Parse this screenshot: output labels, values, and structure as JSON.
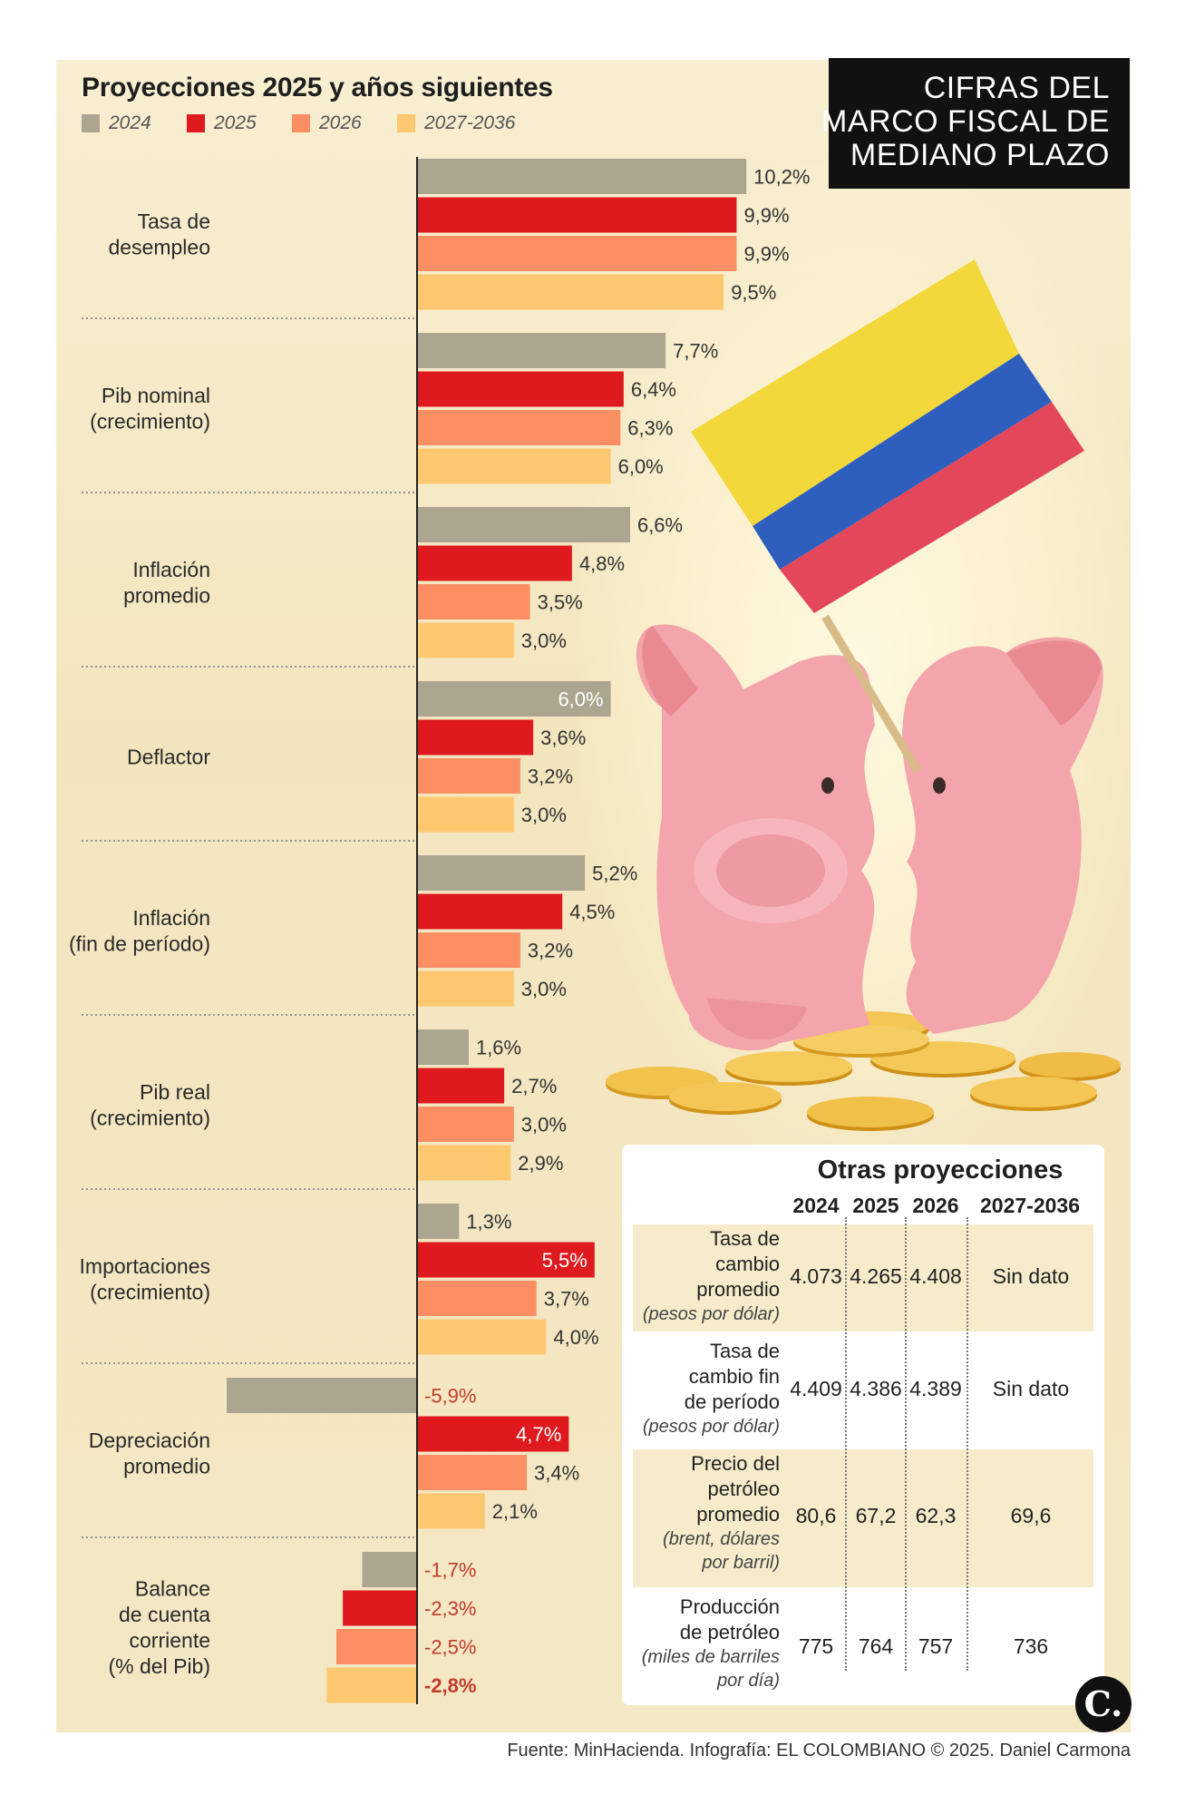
{
  "title_box": {
    "lines": [
      "CIFRAS DEL",
      "MARCO FISCAL DE",
      "MEDIANO PLAZO"
    ]
  },
  "colors": {
    "2024": "#aca58f",
    "2025": "#df1a1e",
    "2026": "#fc8e64",
    "2027-2036": "#fec871",
    "negative_label": "#c23b2c"
  },
  "chart_data": {
    "type": "bar",
    "orientation": "horizontal",
    "title": "Proyecciones 2025 y años siguientes",
    "unit": "%",
    "series_names": [
      "2024",
      "2025",
      "2026",
      "2027-2036"
    ],
    "categories": [
      {
        "label": [
          "Tasa de",
          "desempleo"
        ],
        "values": [
          10.2,
          9.9,
          9.9,
          9.5
        ],
        "value_labels": [
          "10,2%",
          "9,9%",
          "9,9%",
          "9,5%"
        ]
      },
      {
        "label": [
          "Pib nominal",
          "(crecimiento)"
        ],
        "values": [
          7.7,
          6.4,
          6.3,
          6.0
        ],
        "value_labels": [
          "7,7%",
          "6,4%",
          "6,3%",
          "6,0%"
        ]
      },
      {
        "label": [
          "Inflación",
          "promedio"
        ],
        "values": [
          6.6,
          4.8,
          3.5,
          3.0
        ],
        "value_labels": [
          "6,6%",
          "4,8%",
          "3,5%",
          "3,0%"
        ]
      },
      {
        "label": [
          "Deflactor"
        ],
        "values": [
          6.0,
          3.6,
          3.2,
          3.0
        ],
        "value_labels": [
          "6,0%",
          "3,6%",
          "3,2%",
          "3,0%"
        ]
      },
      {
        "label": [
          "Inflación",
          "(fin de período)"
        ],
        "values": [
          5.2,
          4.5,
          3.2,
          3.0
        ],
        "value_labels": [
          "5,2%",
          "4,5%",
          "3,2%",
          "3,0%"
        ]
      },
      {
        "label": [
          "Pib real",
          "(crecimiento)"
        ],
        "values": [
          1.6,
          2.7,
          3.0,
          2.9
        ],
        "value_labels": [
          "1,6%",
          "2,7%",
          "3,0%",
          "2,9%"
        ]
      },
      {
        "label": [
          "Importaciones",
          "(crecimiento)"
        ],
        "values": [
          1.3,
          5.5,
          3.7,
          4.0
        ],
        "value_labels": [
          "1,3%",
          "5,5%",
          "3,7%",
          "4,0%"
        ]
      },
      {
        "label": [
          "Depreciación",
          "promedio"
        ],
        "values": [
          -5.9,
          4.7,
          3.4,
          2.1
        ],
        "value_labels": [
          "-5,9%",
          "4,7%",
          "3,4%",
          "2,1%"
        ]
      },
      {
        "label": [
          "Balance",
          "de cuenta",
          "corriente",
          "(% del Pib)"
        ],
        "values": [
          -1.7,
          -2.3,
          -2.5,
          -2.8
        ],
        "value_labels": [
          "-1,7%",
          "-2,3%",
          "-2,5%",
          "-2,8%"
        ]
      }
    ]
  },
  "table": {
    "title": "Otras proyecciones",
    "headers": [
      "2024",
      "2025",
      "2026",
      "2027-2036"
    ],
    "rows": [
      {
        "label": [
          "Tasa de",
          "cambio",
          "promedio"
        ],
        "note": "(pesos por dólar)",
        "values": [
          "4.073",
          "4.265",
          "4.408",
          "Sin dato"
        ]
      },
      {
        "label": [
          "Tasa de",
          "cambio fin",
          "de período"
        ],
        "note": "(pesos por dólar)",
        "values": [
          "4.409",
          "4.386",
          "4.389",
          "Sin dato"
        ]
      },
      {
        "label": [
          "Precio del",
          "petróleo",
          "promedio"
        ],
        "note": "(brent, dólares por barril)",
        "values": [
          "80,6",
          "67,2",
          "62,3",
          "69,6"
        ]
      },
      {
        "label": [
          "Producción",
          "de petróleo"
        ],
        "note": "(miles de barriles por día)",
        "values": [
          "775",
          "764",
          "757",
          "736"
        ]
      }
    ]
  },
  "footer": "Fuente: MinHacienda. Infografía: EL COLOMBIANO © 2025. Daniel Carmona",
  "logo": "C."
}
